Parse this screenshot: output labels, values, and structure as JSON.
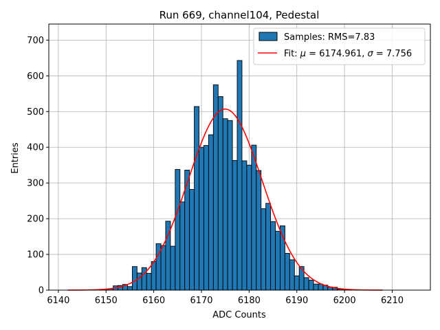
{
  "chart_data": {
    "type": "bar",
    "title": "Run 669, channel104, Pedestal",
    "xlabel": "ADC Counts",
    "ylabel": "Entries",
    "xlim": [
      6138,
      6218
    ],
    "ylim": [
      0,
      745
    ],
    "grid": true,
    "legend_position": "top-right",
    "xticks": [
      6140,
      6150,
      6160,
      6170,
      6180,
      6190,
      6200,
      6210
    ],
    "yticks": [
      0,
      100,
      200,
      300,
      400,
      500,
      600,
      700
    ],
    "colors": {
      "bars": "#1f77b4",
      "bar_edge": "#000000",
      "fit": "#ff0000",
      "grid": "#b0b0b0"
    },
    "legend": {
      "samples_label": "Samples: RMS=7.83",
      "fit_label_prefix": "Fit: ",
      "fit_mu_symbol": "μ",
      "fit_mu_value": " = 6174.961, ",
      "fit_sigma_symbol": "σ",
      "fit_sigma_value": " = 7.756"
    },
    "histogram": {
      "bin_width": 1,
      "bins": [
        [
          6150,
          3
        ],
        [
          6151,
          4
        ],
        [
          6152,
          12
        ],
        [
          6153,
          13
        ],
        [
          6154,
          16
        ],
        [
          6155,
          10
        ],
        [
          6156,
          66
        ],
        [
          6157,
          48
        ],
        [
          6158,
          63
        ],
        [
          6159,
          47
        ],
        [
          6160,
          80
        ],
        [
          6161,
          130
        ],
        [
          6162,
          125
        ],
        [
          6163,
          193
        ],
        [
          6164,
          123
        ],
        [
          6165,
          338
        ],
        [
          6166,
          247
        ],
        [
          6167,
          336
        ],
        [
          6168,
          282
        ],
        [
          6169,
          514
        ],
        [
          6170,
          400
        ],
        [
          6171,
          405
        ],
        [
          6172,
          435
        ],
        [
          6173,
          575
        ],
        [
          6174,
          542
        ],
        [
          6175,
          480
        ],
        [
          6176,
          475
        ],
        [
          6177,
          363
        ],
        [
          6178,
          643
        ],
        [
          6179,
          362
        ],
        [
          6180,
          350
        ],
        [
          6181,
          406
        ],
        [
          6182,
          335
        ],
        [
          6183,
          228
        ],
        [
          6184,
          243
        ],
        [
          6185,
          192
        ],
        [
          6186,
          165
        ],
        [
          6187,
          180
        ],
        [
          6188,
          103
        ],
        [
          6189,
          85
        ],
        [
          6190,
          40
        ],
        [
          6191,
          66
        ],
        [
          6192,
          35
        ],
        [
          6193,
          28
        ],
        [
          6194,
          17
        ],
        [
          6195,
          17
        ],
        [
          6196,
          14
        ],
        [
          6197,
          9
        ],
        [
          6198,
          8
        ],
        [
          6199,
          3
        ],
        [
          6200,
          3
        ],
        [
          6201,
          2
        ],
        [
          6202,
          1
        ]
      ]
    },
    "fit": {
      "mu": 6174.961,
      "sigma": 7.756,
      "amplitude": 507,
      "x_range": [
        6142,
        6208
      ]
    }
  }
}
